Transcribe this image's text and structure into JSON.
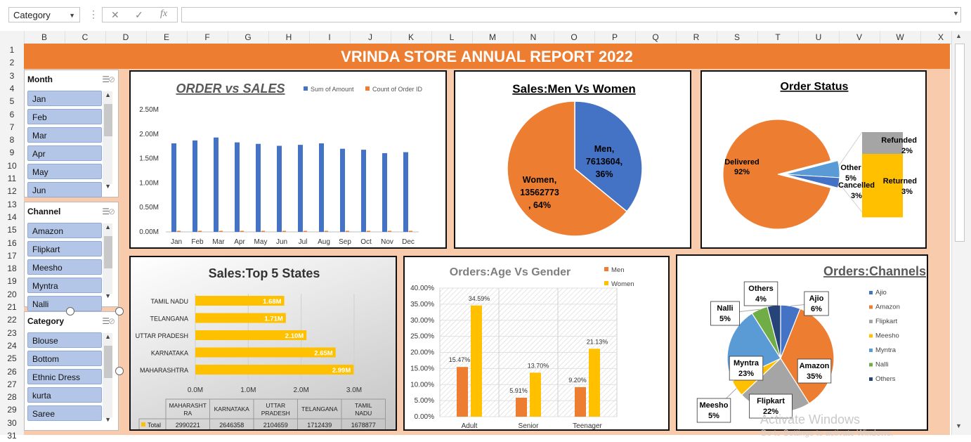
{
  "formula_bar": {
    "name_box": "Category",
    "formula": ""
  },
  "columns": [
    "B",
    "C",
    "D",
    "E",
    "F",
    "G",
    "H",
    "I",
    "J",
    "K",
    "L",
    "M",
    "N",
    "O",
    "P",
    "Q",
    "R",
    "S",
    "T",
    "U",
    "V",
    "W",
    "X"
  ],
  "rows": [
    "1",
    "2",
    "3",
    "4",
    "5",
    "6",
    "7",
    "8",
    "9",
    "10",
    "11",
    "12",
    "13",
    "14",
    "15",
    "16",
    "17",
    "18",
    "19",
    "20",
    "21",
    "22",
    "23",
    "24",
    "25",
    "26",
    "27",
    "28",
    "29",
    "30",
    "31"
  ],
  "report_title": "VRINDA STORE ANNUAL REPORT 2022",
  "slicers": [
    {
      "header": "Month",
      "items": [
        "Jan",
        "Feb",
        "Mar",
        "Apr",
        "May",
        "Jun"
      ]
    },
    {
      "header": "Channel",
      "items": [
        "Amazon",
        "Flipkart",
        "Meesho",
        "Myntra",
        "Nalli"
      ]
    },
    {
      "header": "Category",
      "items": [
        "Blouse",
        "Bottom",
        "Ethnic Dress",
        "kurta",
        "Saree"
      ]
    }
  ],
  "watermark": {
    "line1": "Activate Windows",
    "line2": "Go to Settings to activate Windows."
  },
  "colors": {
    "orange": "#ed7d31",
    "blue": "#4472c4",
    "gold": "#ffc000",
    "peach": "#f8cbad",
    "gray": "#a5a5a5"
  },
  "chart_data": [
    {
      "type": "bar",
      "title": "ORDER vs SALES",
      "categories": [
        "Jan",
        "Feb",
        "Mar",
        "Apr",
        "May",
        "Jun",
        "Jul",
        "Aug",
        "Sep",
        "Oct",
        "Nov",
        "Dec"
      ],
      "series": [
        {
          "name": "Sum of Amount",
          "values": [
            1.81,
            1.87,
            1.93,
            1.83,
            1.8,
            1.76,
            1.78,
            1.81,
            1.7,
            1.68,
            1.61,
            1.63
          ]
        },
        {
          "name": "Count of Order ID",
          "values": [
            0.01,
            0.01,
            0.01,
            0.01,
            0.01,
            0.01,
            0.01,
            0.01,
            0.01,
            0.01,
            0.01,
            0.01
          ]
        }
      ],
      "yticks": [
        "0.00M",
        "0.50M",
        "1.00M",
        "1.50M",
        "2.00M",
        "2.50M"
      ],
      "ylim": [
        0,
        2.5
      ],
      "legend": "top-right"
    },
    {
      "type": "pie",
      "title": "Sales:Men Vs Women",
      "slices": [
        {
          "label": "Men",
          "value": 7613604,
          "pct": "36%",
          "text": "Men,|7613604,|36%"
        },
        {
          "label": "Women",
          "value": 13562773,
          "pct": "64%",
          "text": "Women,|13562773|, 64%"
        }
      ]
    },
    {
      "type": "pie",
      "title": "Order Status",
      "slices": [
        {
          "label": "Delivered",
          "value": 92,
          "pct": "92%"
        },
        {
          "label": "Other",
          "value": 5,
          "pct": "5%"
        },
        {
          "label": "Cancelled",
          "value": 3,
          "pct": "3%"
        }
      ],
      "breakout": [
        {
          "label": "Refunded",
          "value": 2,
          "pct": "2%"
        },
        {
          "label": "Returned",
          "value": 3,
          "pct": "3%"
        }
      ]
    },
    {
      "type": "bar",
      "orientation": "horizontal",
      "title": "Sales:Top 5 States",
      "categories": [
        "TAMIL NADU",
        "TELANGANA",
        "UTTAR PRADESH",
        "KARNATAKA",
        "MAHARASHTRA"
      ],
      "values": [
        1.68,
        1.71,
        2.1,
        2.65,
        2.99
      ],
      "data_labels": [
        "1.68M",
        "1.71M",
        "2.10M",
        "2.65M",
        "2.99M"
      ],
      "xticks": [
        "0.0M",
        "1.0M",
        "2.0M",
        "3.0M"
      ],
      "xlim": [
        0,
        3
      ],
      "table": {
        "headers": [
          "MAHARASHT RA",
          "KARNATAKA",
          "UTTAR PRADESH",
          "TELANGANA",
          "TAMIL NADU"
        ],
        "row_label": "Total",
        "values": [
          "2990221",
          "2646358",
          "2104659",
          "1712439",
          "1678877"
        ]
      }
    },
    {
      "type": "bar",
      "title": "Orders:Age Vs Gender",
      "categories": [
        "Adult",
        "Senior",
        "Teenager"
      ],
      "series": [
        {
          "name": "Men",
          "values": [
            15.47,
            5.91,
            9.2
          ],
          "labels": [
            "15.47%",
            "5.91%",
            "9.20%"
          ]
        },
        {
          "name": "Women",
          "values": [
            34.59,
            13.7,
            21.13
          ],
          "labels": [
            "34.59%",
            "13.70%",
            "21.13%"
          ]
        }
      ],
      "yticks": [
        "0.00%",
        "5.00%",
        "10.00%",
        "15.00%",
        "20.00%",
        "25.00%",
        "30.00%",
        "35.00%",
        "40.00%"
      ],
      "ylim": [
        0,
        40
      ],
      "legend": "top-right"
    },
    {
      "type": "pie",
      "title": "Orders:Channels",
      "slices": [
        {
          "label": "Ajio",
          "value": 6,
          "pct": "6%"
        },
        {
          "label": "Amazon",
          "value": 35,
          "pct": "35%"
        },
        {
          "label": "Flipkart",
          "value": 22,
          "pct": "22%"
        },
        {
          "label": "Meesho",
          "value": 5,
          "pct": "5%"
        },
        {
          "label": "Myntra",
          "value": 23,
          "pct": "23%"
        },
        {
          "label": "Nalli",
          "value": 5,
          "pct": "5%"
        },
        {
          "label": "Others",
          "value": 4,
          "pct": "4%"
        }
      ],
      "legend": "right"
    }
  ]
}
